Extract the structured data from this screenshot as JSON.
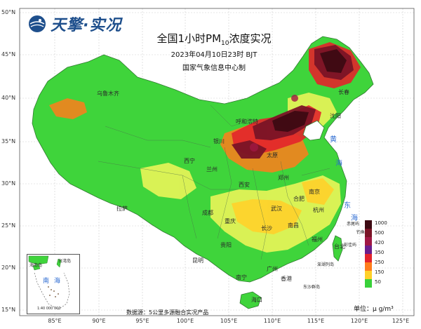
{
  "brand": {
    "name": "天擎·实况"
  },
  "title": {
    "main": "全国1小时PM",
    "sub": "10",
    "suffix": "浓度实况"
  },
  "subtitle": "2023年04月10日23时 BJT",
  "agency": "国家气象信息中心制",
  "source": "数据源：5公里多源融合实况产品",
  "units": "单位：μ g/m³",
  "lat_labels": [
    "50°N",
    "45°N",
    "40°N",
    "35°N",
    "30°N",
    "25°N",
    "20°N",
    "15°N"
  ],
  "lon_labels": [
    "85°E",
    "90°E",
    "95°E",
    "100°E",
    "105°E",
    "110°E",
    "115°E",
    "120°E",
    "125°E"
  ],
  "legend": {
    "levels": [
      "1000",
      "500",
      "420",
      "350",
      "250",
      "150",
      "50"
    ],
    "colors": [
      "#3d0a12",
      "#7a1426",
      "#a01844",
      "#6b1e8c",
      "#e3242b",
      "#ff7d1c",
      "#ffd12a",
      "#f4f75a",
      "#39d13a"
    ]
  },
  "cities": [
    {
      "name": "乌鲁木齐",
      "key": "urumqi"
    },
    {
      "name": "呼和浩特",
      "key": "hohhot"
    },
    {
      "name": "银川",
      "key": "yinchuan"
    },
    {
      "name": "西宁",
      "key": "xining"
    },
    {
      "name": "兰州",
      "key": "lanzhou"
    },
    {
      "name": "太原",
      "key": "taiyuan"
    },
    {
      "name": "郑州",
      "key": "zhengzhou"
    },
    {
      "name": "西安",
      "key": "xian"
    },
    {
      "name": "拉萨",
      "key": "lhasa"
    },
    {
      "name": "成都",
      "key": "chengdu"
    },
    {
      "name": "重庆",
      "key": "chongqing"
    },
    {
      "name": "武汉",
      "key": "wuhan"
    },
    {
      "name": "合肥",
      "key": "hefei"
    },
    {
      "name": "南京",
      "key": "nanjing"
    },
    {
      "name": "杭州",
      "key": "hangzhou"
    },
    {
      "name": "长沙",
      "key": "changsha"
    },
    {
      "name": "南昌",
      "key": "nanchang"
    },
    {
      "name": "福州",
      "key": "fuzhou"
    },
    {
      "name": "贵阳",
      "key": "guiyang"
    },
    {
      "name": "昆明",
      "key": "kunming"
    },
    {
      "name": "南宁",
      "key": "nanning"
    },
    {
      "name": "广州",
      "key": "guangzhou"
    },
    {
      "name": "香港",
      "key": "hongkong"
    },
    {
      "name": "海口",
      "key": "haikou"
    },
    {
      "name": "台北",
      "key": "taipei"
    },
    {
      "name": "沈阳",
      "key": "shenyang"
    },
    {
      "name": "长春",
      "key": "changchun"
    }
  ],
  "islands": [
    {
      "name": "钓鱼岛",
      "key": "diaoyu"
    },
    {
      "name": "赤尾屿",
      "key": "chiwei"
    },
    {
      "name": "彭佳屿",
      "key": "pengjia"
    },
    {
      "name": "澎湖列岛",
      "key": "penghu"
    },
    {
      "name": "东沙群岛",
      "key": "dongsha"
    }
  ],
  "seas": [
    {
      "name": "黄",
      "key": "yellow"
    },
    {
      "name": "海",
      "key": "yellow2"
    },
    {
      "name": "东",
      "key": "east"
    },
    {
      "name": "海",
      "key": "east2"
    }
  ],
  "inset": {
    "labels": [
      "海南岛",
      "台湾岛",
      "南",
      "海",
      "1:40 000 000"
    ]
  }
}
